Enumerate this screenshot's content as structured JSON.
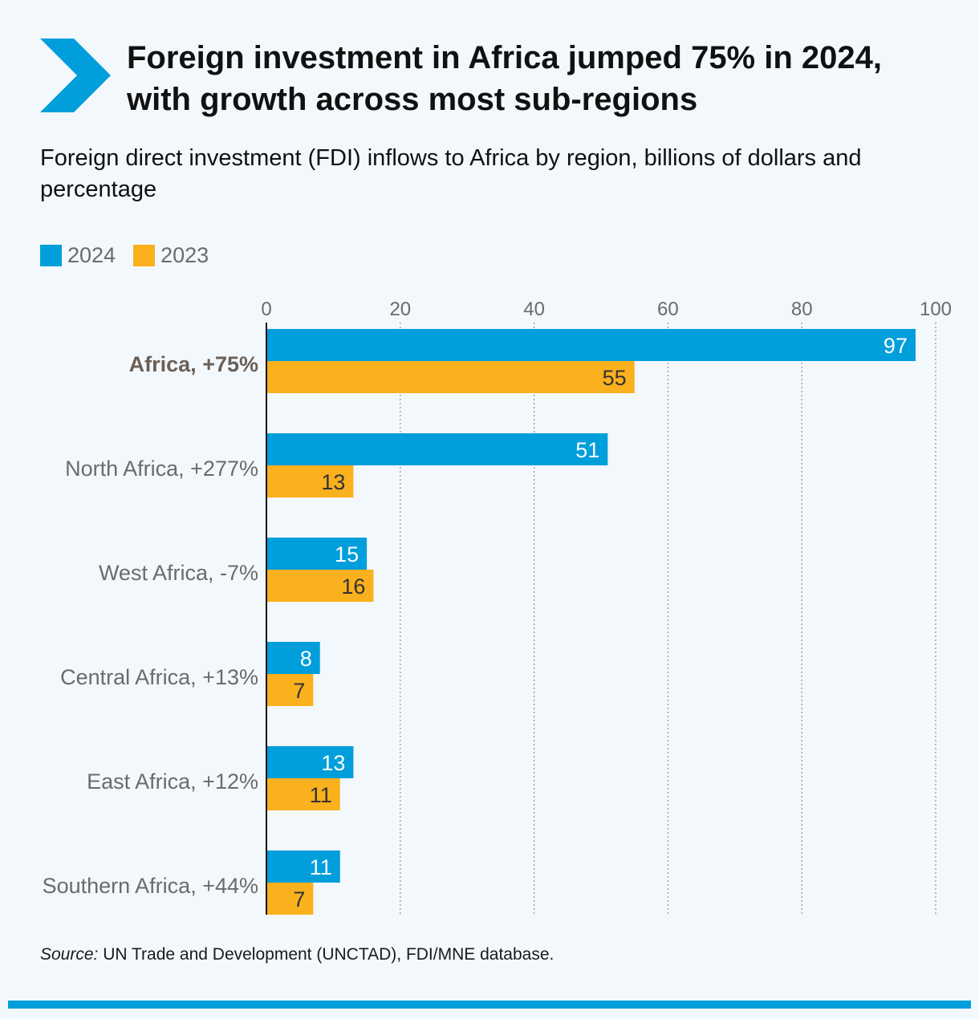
{
  "title": "Foreign investment in Africa jumped 75% in 2024, with growth across most sub-regions",
  "subtitle": "Foreign direct investment (FDI) inflows to Africa by region, billions of dollars and percentage",
  "legend": [
    {
      "label": "2024",
      "color": "#009edb"
    },
    {
      "label": "2023",
      "color": "#fbb01e"
    }
  ],
  "source": {
    "prefix": "Source:",
    "text": " UN Trade and Development (UNCTAD), FDI/MNE database."
  },
  "colors": {
    "accent": "#009edb",
    "series_2024": "#009edb",
    "series_2023": "#fbb01e",
    "grid": "#9a9a9a"
  },
  "chart_data": {
    "type": "bar",
    "orientation": "horizontal",
    "title": "Foreign investment in Africa jumped 75% in 2024, with growth across most sub-regions",
    "xlabel": "",
    "ylabel": "",
    "xlim": [
      0,
      100
    ],
    "xticks": [
      0,
      20,
      40,
      60,
      80,
      100
    ],
    "grid": true,
    "legend_position": "top-left",
    "categories": [
      "Africa, +75%",
      "North Africa, +277%",
      "West Africa, -7%",
      "Central Africa, +13%",
      "East Africa, +12%",
      "Southern Africa, +44%"
    ],
    "series": [
      {
        "name": "2024",
        "values": [
          97,
          51,
          15,
          8,
          13,
          11
        ]
      },
      {
        "name": "2023",
        "values": [
          55,
          13,
          16,
          7,
          11,
          7
        ]
      }
    ]
  }
}
